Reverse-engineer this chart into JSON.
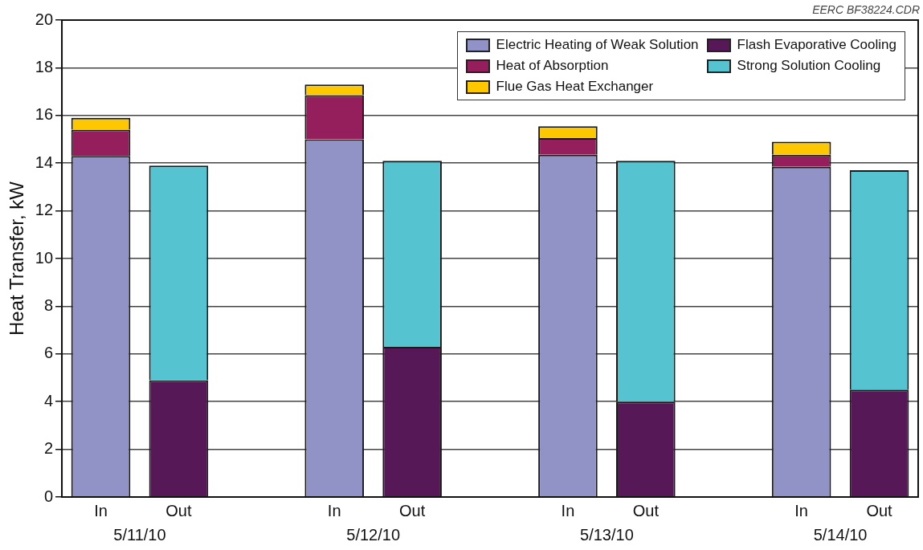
{
  "chart_data": {
    "type": "bar",
    "stacked": true,
    "ylabel": "Heat Transfer, kW",
    "categories": [
      "In",
      "Out",
      null,
      "In",
      "Out",
      null,
      "In",
      "Out",
      null,
      "In",
      "Out"
    ],
    "series": [
      {
        "name": "Electric Heating of Weak Solution",
        "color": "#9193c7",
        "values": [
          14.3,
          null,
          null,
          15.0,
          null,
          null,
          14.35,
          null,
          null,
          13.85,
          null
        ]
      },
      {
        "name": "Heat of Absorption",
        "color": "#951f5c",
        "values": [
          1.1,
          null,
          null,
          1.85,
          null,
          null,
          0.7,
          null,
          null,
          0.5,
          null
        ]
      },
      {
        "name": "Flue Gas Heat Exchanger",
        "color": "#fdc800",
        "values": [
          0.5,
          null,
          null,
          0.45,
          null,
          null,
          0.5,
          null,
          null,
          0.55,
          null
        ]
      },
      {
        "name": "Flash Evaporative Cooling",
        "color": "#561857",
        "values": [
          null,
          4.9,
          null,
          null,
          6.3,
          null,
          null,
          4.0,
          null,
          null,
          4.5
        ]
      },
      {
        "name": "Strong Solution Cooling",
        "color": "#55c4d0",
        "values": [
          null,
          9.0,
          null,
          null,
          7.8,
          null,
          null,
          10.1,
          null,
          null,
          9.2
        ]
      }
    ],
    "ylim": [
      0,
      20
    ],
    "yticks": [
      0,
      2,
      4,
      6,
      8,
      10,
      12,
      14,
      16,
      18,
      20
    ],
    "grid": "y",
    "legend": "top right",
    "annotations": [
      "EERC BF38224.CDR",
      "5/11/10",
      "5/12/10",
      "5/13/10",
      "5/14/10"
    ]
  }
}
